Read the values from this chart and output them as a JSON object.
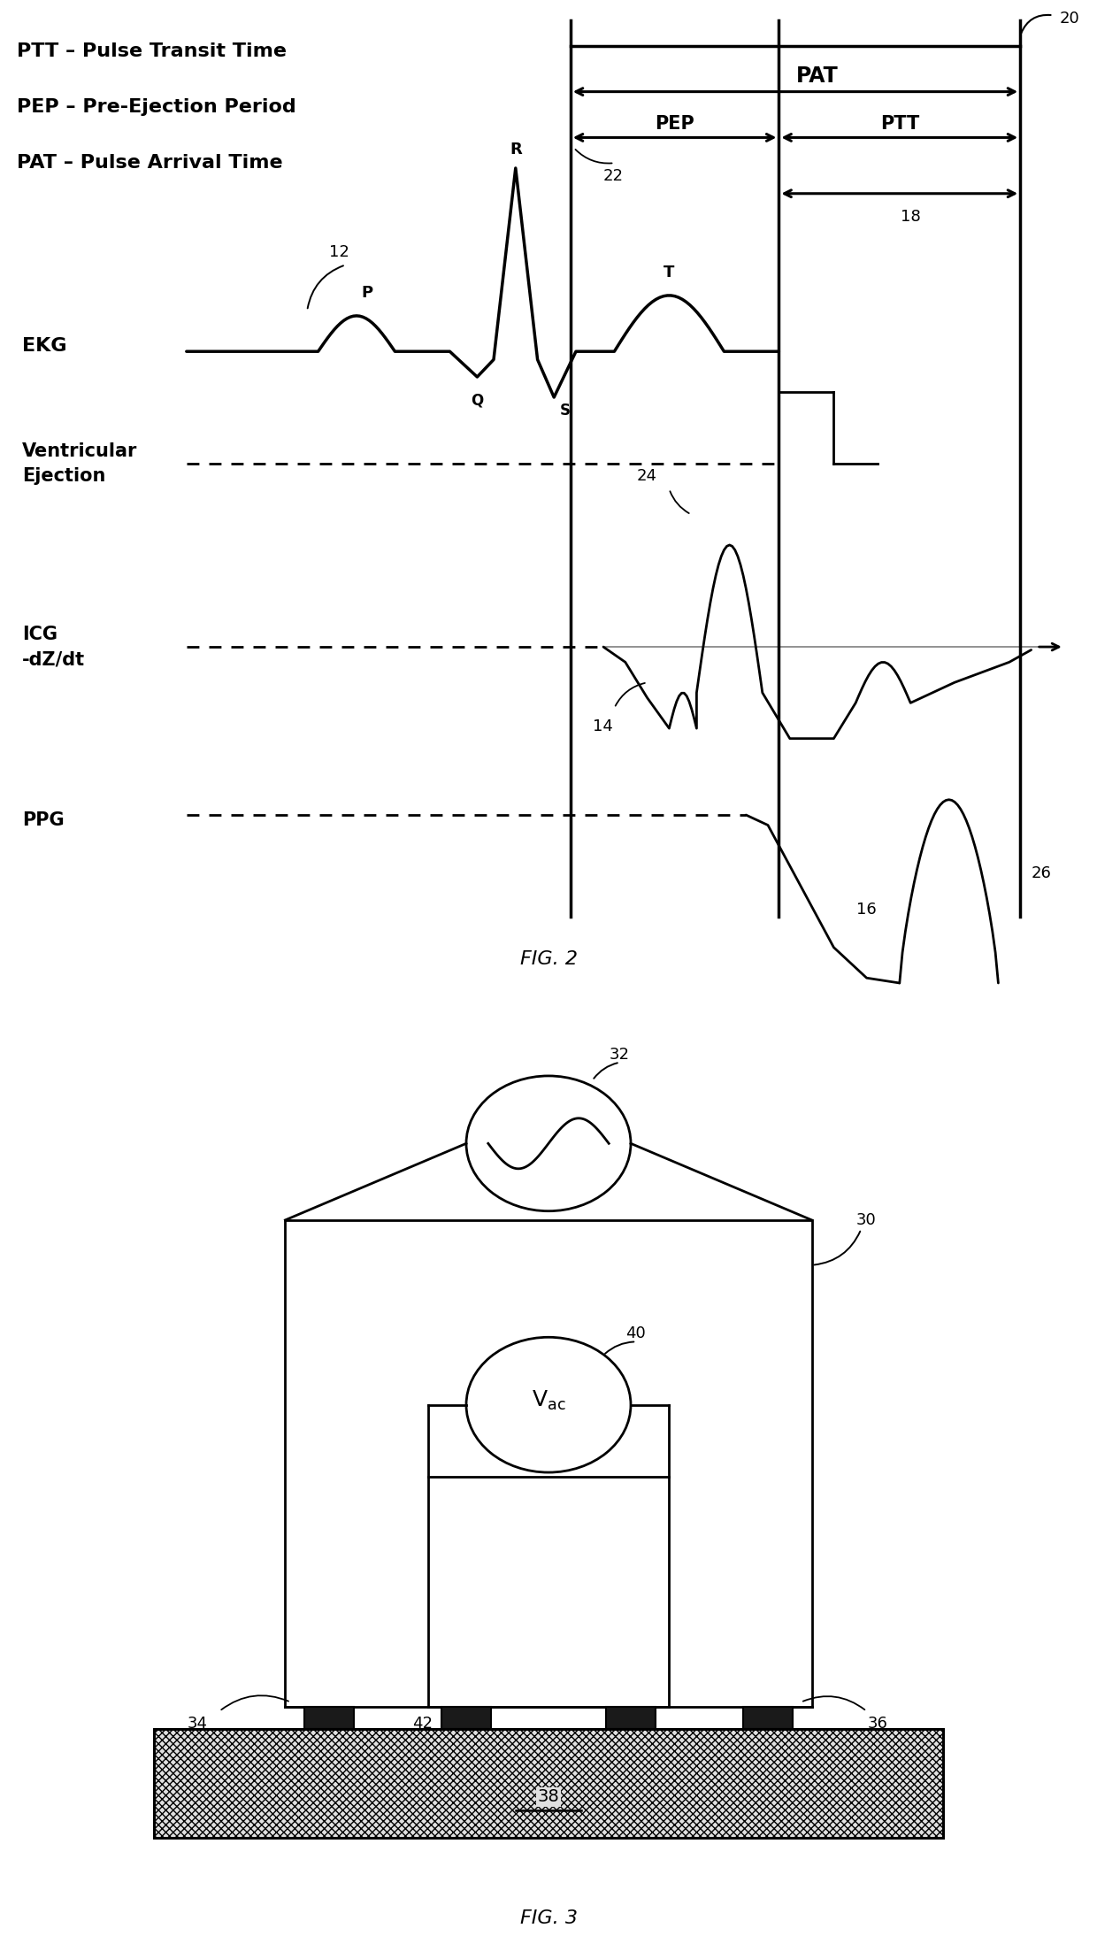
{
  "fig_width": 12.4,
  "fig_height": 22.14,
  "bg_color": "#ffffff",
  "line_color": "#000000",
  "font_family": "Arial",
  "fig2_caption": "FIG. 2",
  "fig3_caption": "FIG. 3",
  "legend_lines": [
    "PTT – Pulse Transit Time",
    "PEP – Pre-Ejection Period",
    "PAT – Pulse Arrival Time"
  ]
}
